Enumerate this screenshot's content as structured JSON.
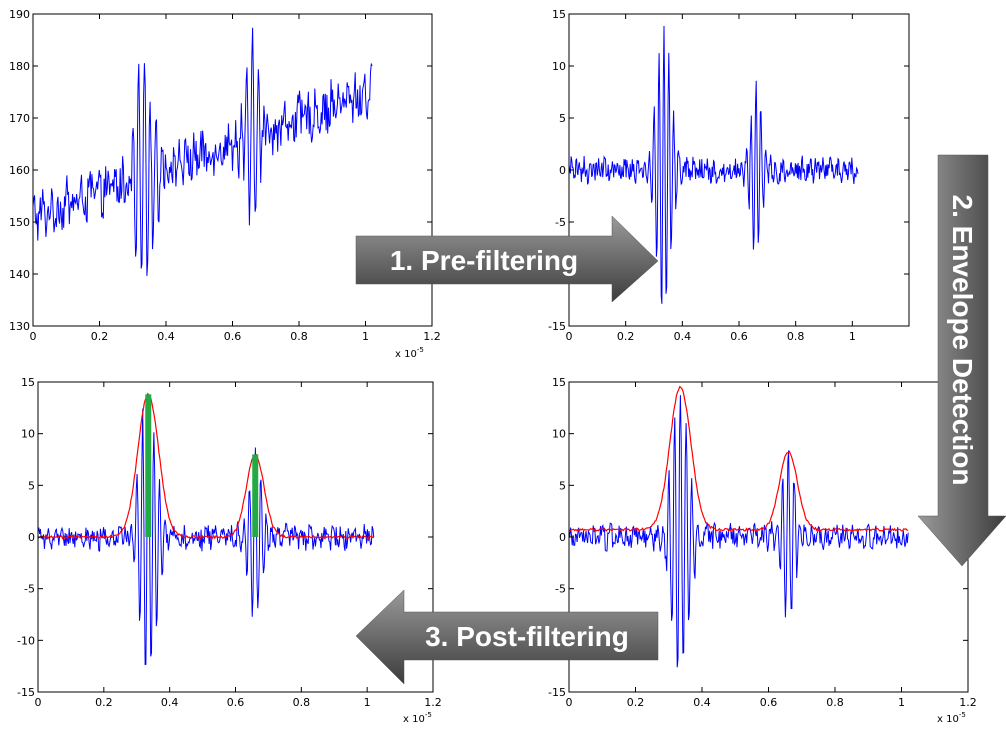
{
  "chart_data": [
    {
      "id": "raw",
      "type": "line",
      "title": "",
      "xlim": [
        0,
        1.2
      ],
      "ylim": [
        130,
        190
      ],
      "x_ticks": [
        "0",
        "0.2",
        "0.4",
        "0.6",
        "0.8",
        "1",
        "1.2"
      ],
      "y_ticks": [
        "130",
        "140",
        "150",
        "160",
        "170",
        "180",
        "190"
      ],
      "x_multiplier": {
        "base": "x 10",
        "exponent": "-5"
      },
      "series": [
        {
          "color": "#0000ff",
          "kind": "noisy-raw-signal",
          "x_end": 1.02,
          "baseline_start": 151,
          "baseline_end": 175,
          "noise": 4,
          "bursts": [
            {
              "center": 0.335,
              "width": 0.035,
              "amplitude": 24
            },
            {
              "center": 0.66,
              "width": 0.03,
              "amplitude": 17
            }
          ]
        }
      ]
    },
    {
      "id": "prefiltered",
      "type": "line",
      "title": "",
      "xlim": [
        0,
        1.2
      ],
      "ylim": [
        -15,
        15
      ],
      "x_ticks": [
        "0",
        "0.2",
        "0.4",
        "0.6",
        "0.8",
        "1",
        ""
      ],
      "y_ticks": [
        "-15",
        "-10",
        "-5",
        "0",
        "5",
        "10",
        "15"
      ],
      "x_multiplier": null,
      "series": [
        {
          "color": "#0000ff",
          "kind": "filtered-signal",
          "x_end": 1.02,
          "noise": 1.0,
          "bursts": [
            {
              "center": 0.335,
              "width": 0.035,
              "amplitude": 14.5
            },
            {
              "center": 0.66,
              "width": 0.03,
              "amplitude": 8
            }
          ]
        }
      ]
    },
    {
      "id": "postfiltered",
      "type": "line",
      "title": "",
      "xlim": [
        0,
        1.2
      ],
      "ylim": [
        -15,
        15
      ],
      "x_ticks": [
        "0",
        "0.2",
        "0.4",
        "0.6",
        "0.8",
        "1",
        "1.2"
      ],
      "y_ticks": [
        "-15",
        "-10",
        "-5",
        "0",
        "5",
        "10",
        "15"
      ],
      "x_multiplier": {
        "base": "x 10",
        "exponent": "-5"
      },
      "series": [
        {
          "color": "#0000ff",
          "kind": "filtered-signal",
          "x_end": 1.02,
          "noise": 1.0,
          "bursts": [
            {
              "center": 0.335,
              "width": 0.035,
              "amplitude": 14.5
            },
            {
              "center": 0.66,
              "width": 0.03,
              "amplitude": 8
            }
          ]
        },
        {
          "color": "#ff0000",
          "kind": "envelope",
          "x_end": 1.02,
          "offset": 0.0,
          "peaks": [
            {
              "center": 0.335,
              "width": 0.045,
              "amplitude": 13.8
            },
            {
              "center": 0.66,
              "width": 0.038,
              "amplitude": 8
            }
          ]
        }
      ],
      "markers": [
        {
          "color": "#22aa44",
          "x": 0.335,
          "y0": 0,
          "y1": 13.8
        },
        {
          "color": "#22aa44",
          "x": 0.66,
          "y0": 0,
          "y1": 8
        }
      ]
    },
    {
      "id": "envelope",
      "type": "line",
      "title": "",
      "xlim": [
        0,
        1.2
      ],
      "ylim": [
        -15,
        15
      ],
      "x_ticks": [
        "0",
        "0.2",
        "0.4",
        "0.6",
        "0.8",
        "1",
        "1.2"
      ],
      "y_ticks": [
        "-15",
        "-10",
        "-5",
        "0",
        "5",
        "10",
        "15"
      ],
      "x_multiplier": {
        "base": "x 10",
        "exponent": "-5"
      },
      "series": [
        {
          "color": "#0000ff",
          "kind": "filtered-signal",
          "x_end": 1.02,
          "noise": 1.0,
          "bursts": [
            {
              "center": 0.335,
              "width": 0.035,
              "amplitude": 14.5
            },
            {
              "center": 0.66,
              "width": 0.03,
              "amplitude": 8
            }
          ]
        },
        {
          "color": "#ff0000",
          "kind": "envelope",
          "x_end": 1.02,
          "offset": 0.7,
          "peaks": [
            {
              "center": 0.335,
              "width": 0.045,
              "amplitude": 13.8
            },
            {
              "center": 0.66,
              "width": 0.038,
              "amplitude": 7.6
            }
          ]
        }
      ]
    }
  ],
  "arrows": {
    "prefiltering": "1. Pre-filtering",
    "envelope_detection": "2. Envelope Detection",
    "postfiltering": "3. Post-filtering"
  },
  "colors": {
    "arrow_fill_light": "#8c8c8c",
    "arrow_fill_dark": "#4a4a4a",
    "signal": "#0000ff",
    "envelope": "#ff0000",
    "marker": "#22aa44"
  }
}
